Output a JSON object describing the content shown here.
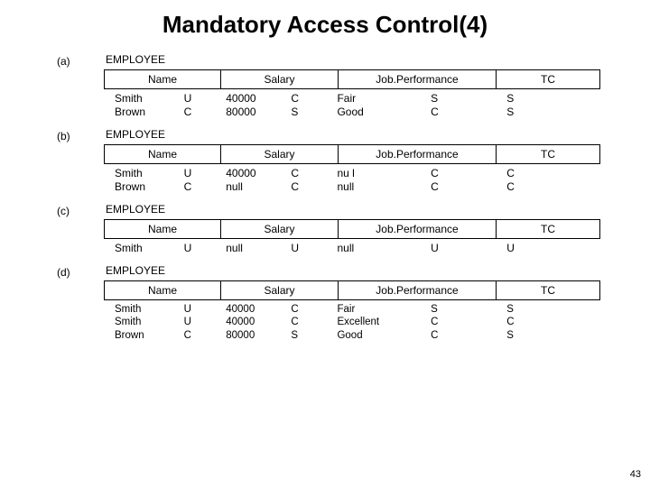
{
  "title": "Mandatory Access Control(4)",
  "page_number": "43",
  "relation_name": "EMPLOYEE",
  "headers": {
    "name": "Name",
    "salary": "Salary",
    "job": "Job.Performance",
    "tc": "TC"
  },
  "panels": [
    {
      "tag": "(a)",
      "rows": [
        {
          "name": "Smith",
          "name_lvl": "U",
          "salary": "40000",
          "salary_lvl": "C",
          "job": "Fair",
          "job_lvl": "S",
          "tc": "S"
        },
        {
          "name": "Brown",
          "name_lvl": "C",
          "salary": "80000",
          "salary_lvl": "S",
          "job": "Good",
          "job_lvl": "C",
          "tc": "S"
        }
      ]
    },
    {
      "tag": "(b)",
      "rows": [
        {
          "name": "Smith",
          "name_lvl": "U",
          "salary": "40000",
          "salary_lvl": "C",
          "job": "nu l",
          "job_lvl": "C",
          "tc": "C"
        },
        {
          "name": "Brown",
          "name_lvl": "C",
          "salary": "null",
          "salary_lvl": "C",
          "job": "null",
          "job_lvl": "C",
          "tc": "C"
        }
      ]
    },
    {
      "tag": "(c)",
      "rows": [
        {
          "name": "Smith",
          "name_lvl": "U",
          "salary": "null",
          "salary_lvl": "U",
          "job": "null",
          "job_lvl": "U",
          "tc": "U"
        }
      ]
    },
    {
      "tag": "(d)",
      "rows": [
        {
          "name": "Smith",
          "name_lvl": "U",
          "salary": "40000",
          "salary_lvl": "C",
          "job": "Fair",
          "job_lvl": "S",
          "tc": "S"
        },
        {
          "name": "Smith",
          "name_lvl": "U",
          "salary": "40000",
          "salary_lvl": "C",
          "job": "Excellent",
          "job_lvl": "C",
          "tc": "C"
        },
        {
          "name": "Brown",
          "name_lvl": "C",
          "salary": "80000",
          "salary_lvl": "S",
          "job": "Good",
          "job_lvl": "C",
          "tc": "S"
        }
      ]
    }
  ]
}
